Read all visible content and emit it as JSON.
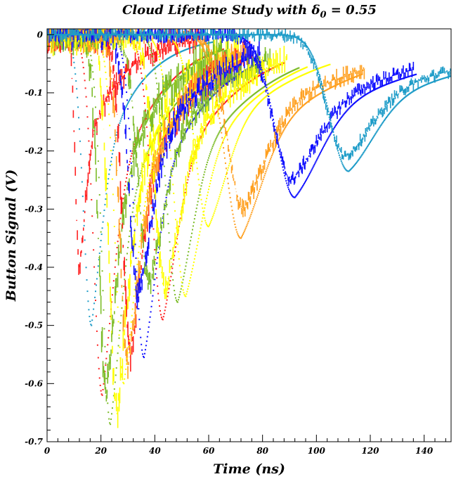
{
  "chart_data": {
    "type": "scatter",
    "title": "Cloud Lifetime Study with δ",
    "title_sub": "0",
    "title_tail": " = 0.55",
    "xlabel": "Time (ns)",
    "ylabel": "Button Signal (V)",
    "xlim": [
      0,
      150
    ],
    "ylim": [
      -0.7,
      0.01
    ],
    "x_ticks": [
      0,
      20,
      40,
      60,
      80,
      100,
      120,
      140
    ],
    "x_tick_labels": [
      "0",
      "20",
      "40",
      "60",
      "80",
      "100",
      "120",
      "140"
    ],
    "y_ticks": [
      0,
      -0.1,
      -0.2,
      -0.3,
      -0.4,
      -0.5,
      -0.6,
      -0.7
    ],
    "y_tick_labels": [
      "0",
      "-0.1",
      "-0.2",
      "-0.3",
      "-0.4",
      "-0.5",
      "-0.6",
      "-0.7"
    ],
    "grid": false,
    "legend": "none",
    "series": [
      {
        "color": "#1e9cc8",
        "start": 3,
        "peak_time": 16.5,
        "peak_value": -0.5,
        "rise": 3.0,
        "tail": 0.07,
        "style": "dots"
      },
      {
        "color": "#ff2020",
        "start": 5,
        "peak_time": 12,
        "peak_value": -0.4,
        "rise": 1.5,
        "tail": 0.075,
        "style": "bars"
      },
      {
        "color": "#ff2020",
        "start": 6,
        "peak_time": 20.5,
        "peak_value": -0.62,
        "rise": 3.2,
        "tail": 0.06,
        "style": "dots"
      },
      {
        "color": "#7cbc28",
        "start": 7,
        "peak_time": 23.5,
        "peak_value": -0.67,
        "rise": 3.0,
        "tail": 0.05,
        "style": "dots"
      },
      {
        "color": "#ffff00",
        "start": 8,
        "peak_time": 26,
        "peak_value": -0.65,
        "rise": 3.0,
        "tail": 0.06,
        "style": "bars"
      },
      {
        "color": "#7cbc28",
        "start": 10,
        "peak_time": 22,
        "peak_value": -0.62,
        "rise": 2.8,
        "tail": 0.06,
        "style": "bars"
      },
      {
        "color": "#ff2020",
        "start": 14,
        "peak_time": 31,
        "peak_value": -0.55,
        "rise": 3.0,
        "tail": 0.05,
        "style": "bars"
      },
      {
        "color": "#ffa020",
        "start": 14,
        "peak_time": 30,
        "peak_value": -0.57,
        "rise": 3.0,
        "tail": 0.05,
        "style": "bars"
      },
      {
        "color": "#ffff00",
        "start": 16,
        "peak_time": 28.5,
        "peak_value": -0.6,
        "rise": 3.2,
        "tail": 0.05,
        "style": "dots"
      },
      {
        "color": "#1010ff",
        "start": 18,
        "peak_time": 34,
        "peak_value": -0.45,
        "rise": 3.5,
        "tail": 0.045,
        "style": "bars"
      },
      {
        "color": "#1010ff",
        "start": 18,
        "peak_time": 36,
        "peak_value": -0.555,
        "rise": 3.5,
        "tail": 0.045,
        "style": "dots"
      },
      {
        "color": "#7cbc28",
        "start": 22,
        "peak_time": 38,
        "peak_value": -0.43,
        "rise": 4.0,
        "tail": 0.04,
        "style": "bars"
      },
      {
        "color": "#ff2020",
        "start": 25,
        "peak_time": 43,
        "peak_value": -0.49,
        "rise": 4.0,
        "tail": 0.04,
        "style": "dots"
      },
      {
        "color": "#ffff00",
        "start": 25,
        "peak_time": 44,
        "peak_value": -0.44,
        "rise": 4.0,
        "tail": 0.04,
        "style": "bars"
      },
      {
        "color": "#7cbc28",
        "start": 28,
        "peak_time": 48.5,
        "peak_value": -0.46,
        "rise": 4.2,
        "tail": 0.035,
        "style": "dots"
      },
      {
        "color": "#ffff00",
        "start": 30,
        "peak_time": 51.5,
        "peak_value": -0.45,
        "rise": 4.5,
        "tail": 0.035,
        "style": "dots"
      },
      {
        "color": "#ffff00",
        "start": 36,
        "peak_time": 60,
        "peak_value": -0.33,
        "rise": 5.0,
        "tail": 0.03,
        "style": "dots"
      },
      {
        "color": "#ffa020",
        "start": 44,
        "peak_time": 72,
        "peak_value": -0.35,
        "rise": 6.0,
        "tail": 0.025,
        "style": "dots"
      },
      {
        "color": "#ffa020",
        "start": 44,
        "peak_time": 73,
        "peak_value": -0.3,
        "rise": 6.0,
        "tail": 0.025,
        "style": "bars"
      },
      {
        "color": "#1010ff",
        "start": 62,
        "peak_time": 92,
        "peak_value": -0.28,
        "rise": 7.0,
        "tail": 0.02,
        "style": "dots"
      },
      {
        "color": "#1010ff",
        "start": 62,
        "peak_time": 91,
        "peak_value": -0.25,
        "rise": 7.0,
        "tail": 0.02,
        "style": "bars"
      },
      {
        "color": "#1e9cc8",
        "start": 80,
        "peak_time": 112,
        "peak_value": -0.235,
        "rise": 7.0,
        "tail": 0.018,
        "style": "dots"
      },
      {
        "color": "#1e9cc8",
        "start": 80,
        "peak_time": 111,
        "peak_value": -0.21,
        "rise": 7.0,
        "tail": 0.018,
        "style": "bars"
      }
    ]
  }
}
